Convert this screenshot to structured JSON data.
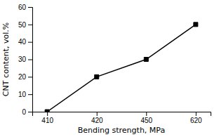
{
  "chart_data": {
    "type": "line",
    "xlabel": "Bending strength, MPa",
    "ylabel": "CNT content, vol.%",
    "categories": [
      "410",
      "420",
      "450",
      "620"
    ],
    "values": [
      0,
      20,
      30,
      50
    ],
    "color": "#000000",
    "marker": "square",
    "ylim": [
      0,
      60
    ],
    "yticks": [
      0,
      10,
      20,
      30,
      40,
      50,
      60
    ],
    "grid": false
  }
}
